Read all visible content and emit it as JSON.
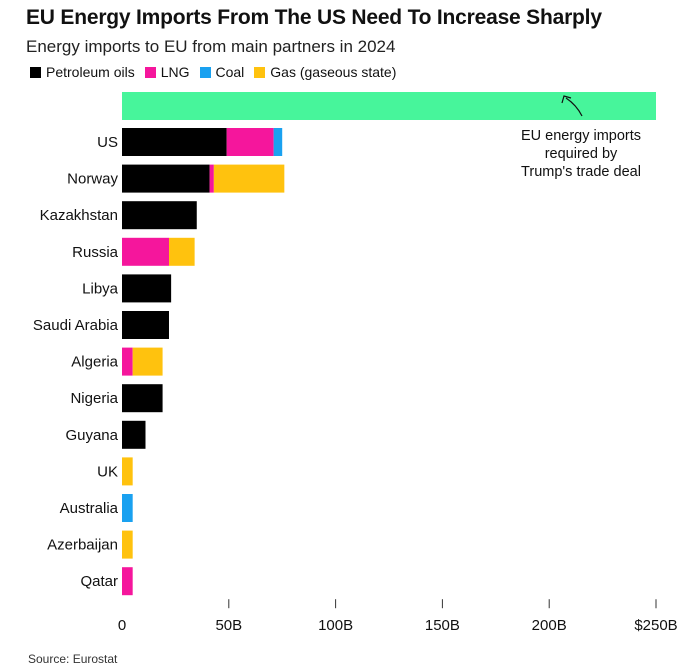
{
  "chart_data": {
    "type": "bar",
    "orientation": "horizontal",
    "stacked": true,
    "title": "EU Energy Imports From The US Need To Increase Sharply",
    "subtitle": "Energy imports to EU from main partners in 2024",
    "xlabel": "",
    "ylabel": "",
    "xlim": [
      0,
      250
    ],
    "unit": "B",
    "x_tick_values": [
      0,
      50,
      100,
      150,
      200,
      250
    ],
    "x_tick_labels": [
      "0",
      "50B",
      "100B",
      "150B",
      "200B",
      "$250B"
    ],
    "categories": [
      "US",
      "Norway",
      "Kazakhstan",
      "Russia",
      "Libya",
      "Saudi Arabia",
      "Algeria",
      "Nigeria",
      "Guyana",
      "UK",
      "Australia",
      "Azerbaijan",
      "Qatar"
    ],
    "series": [
      {
        "name": "Petroleum oils",
        "color": "#000000",
        "values": [
          49,
          41,
          35,
          0,
          23,
          22,
          0,
          19,
          11,
          0,
          0,
          0,
          0
        ]
      },
      {
        "name": "LNG",
        "color": "#f5169c",
        "values": [
          22,
          2,
          0,
          22,
          0,
          0,
          5,
          0,
          0,
          0,
          0,
          0,
          5
        ]
      },
      {
        "name": "Coal",
        "color": "#1aa1f0",
        "values": [
          4,
          0,
          0,
          0,
          0,
          0,
          0,
          0,
          0,
          0,
          5,
          0,
          0
        ]
      },
      {
        "name": "Gas (gaseous state)",
        "color": "#ffc20e",
        "values": [
          0,
          33,
          0,
          12,
          0,
          0,
          14,
          0,
          0,
          5,
          0,
          5,
          0
        ]
      }
    ],
    "target": {
      "label": "Trump trade deal requirement",
      "value": 250,
      "color": "#47f59b",
      "annotation_lines": [
        "EU energy imports",
        "required by",
        "Trump's trade deal"
      ]
    },
    "source": "Source: Eurostat"
  }
}
